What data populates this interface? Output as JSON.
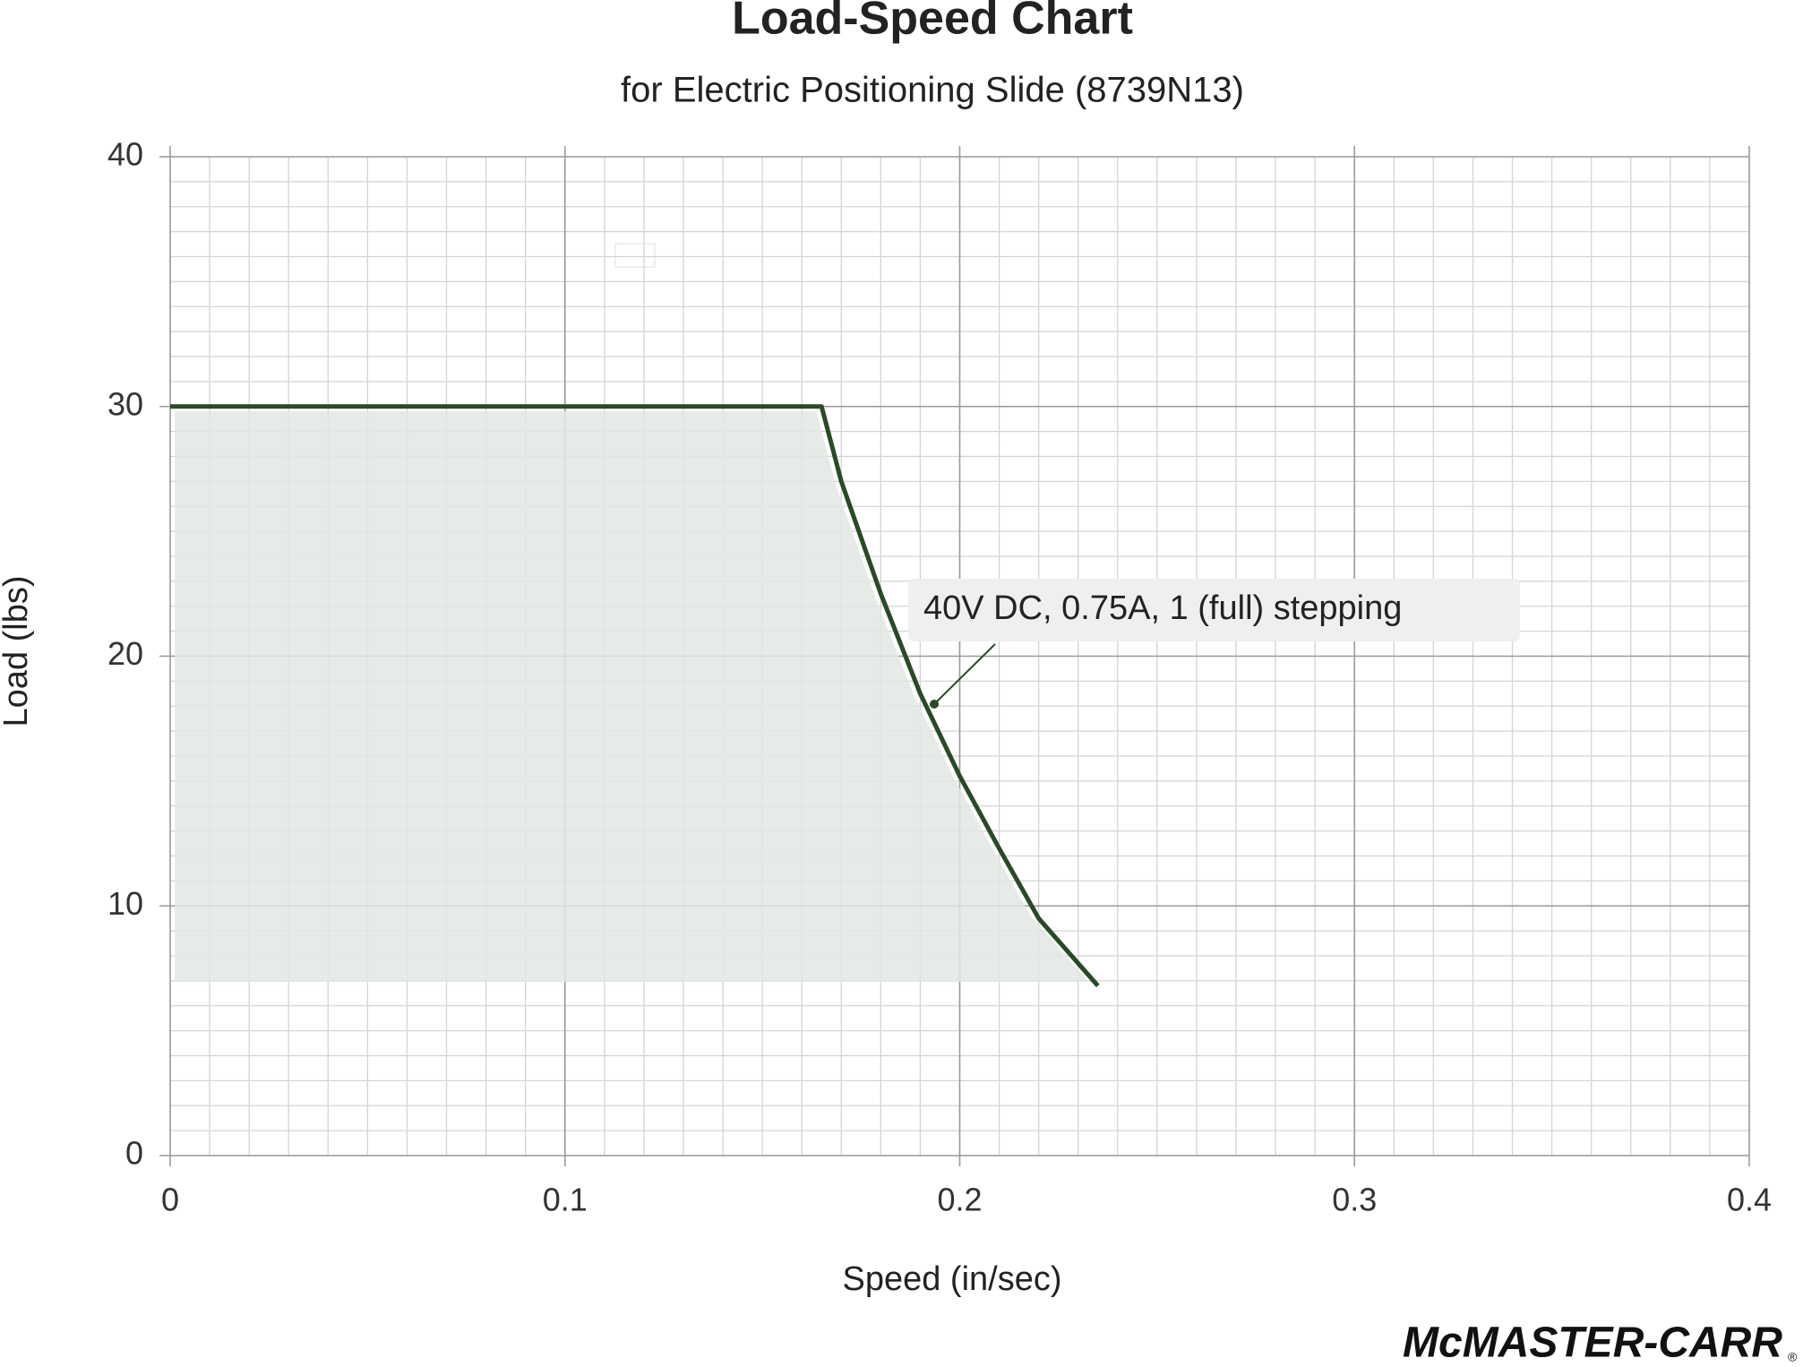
{
  "chart_data": {
    "type": "line",
    "title": "Load-Speed Chart",
    "subtitle": "for Electric Positioning Slide (8739N13)",
    "x_label": "Speed (in/sec)",
    "y_label": "Load (lbs)",
    "x": [
      0,
      0.165,
      0.17,
      0.18,
      0.19,
      0.2,
      0.21,
      0.22,
      0.235
    ],
    "series": [
      {
        "name": "40V DC, 0.75A, 1 (full) stepping",
        "color": "#284a26",
        "values": [
          30,
          30,
          27,
          22.5,
          18.5,
          15.2,
          12.3,
          9.5,
          6.8
        ]
      }
    ],
    "xlim": [
      0,
      0.4
    ],
    "xticks": [
      0,
      0.1,
      0.2,
      0.3,
      0.4
    ],
    "ylim": [
      0,
      40
    ],
    "yticks": [
      0,
      10,
      20,
      30,
      40
    ],
    "grid": true,
    "logo": "McMASTER-CARR"
  }
}
